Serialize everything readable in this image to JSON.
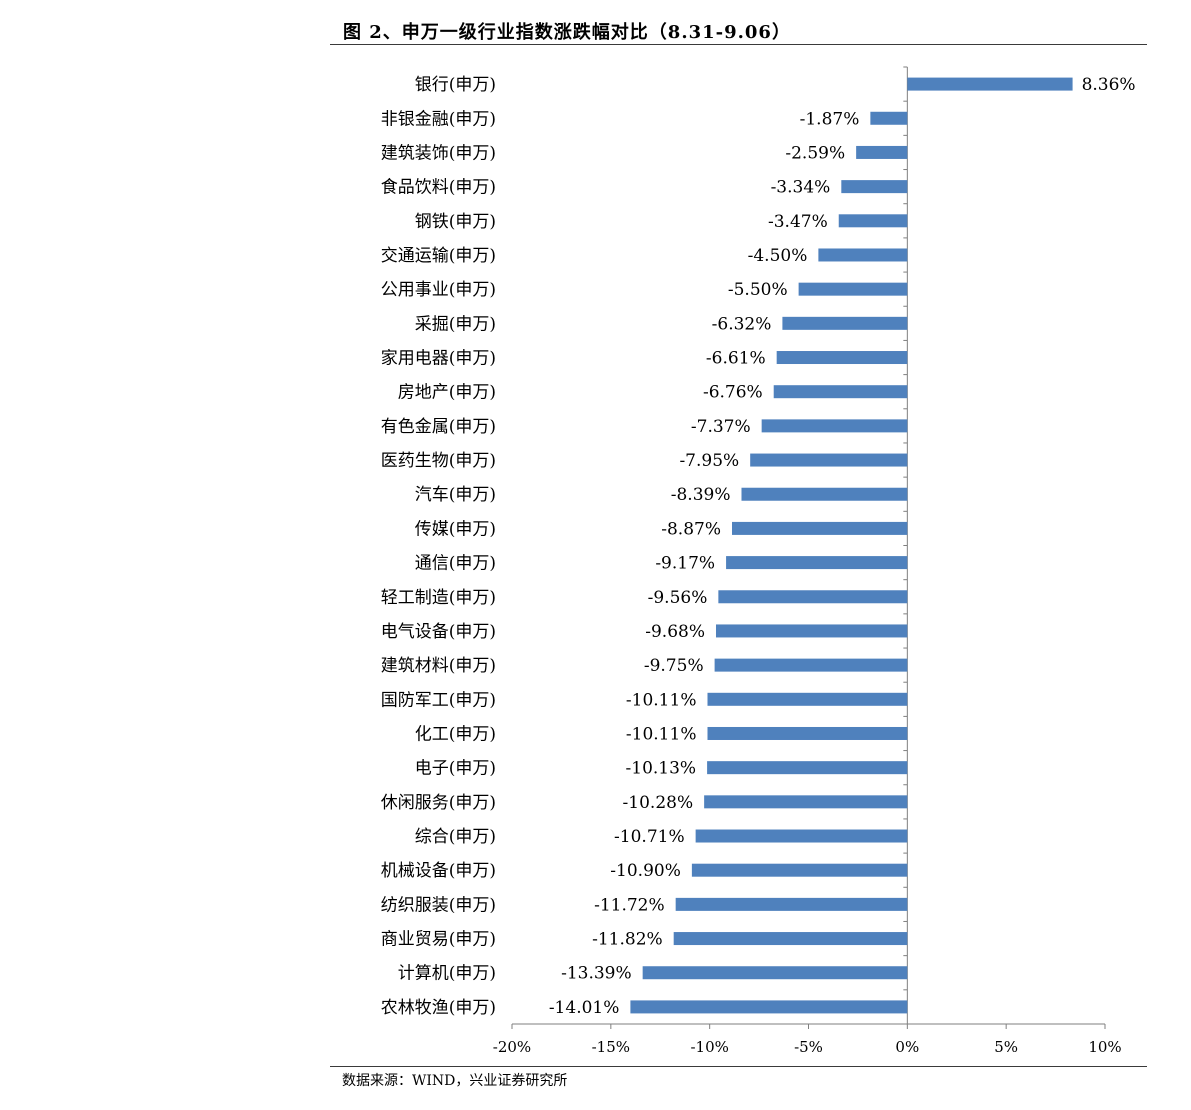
{
  "header": {
    "title": "图 2、申万一级行业指数涨跌幅对比（8.31-9.06）"
  },
  "footer": {
    "source": "数据来源：WIND，兴业证券研究所"
  },
  "colors": {
    "bar": "#4f81bd",
    "axis": "#7f7f7f",
    "rule": "#3a3a3a"
  },
  "chart_data": {
    "type": "bar",
    "orientation": "horizontal",
    "title": "图 2、申万一级行业指数涨跌幅对比（8.31-9.06）",
    "categories": [
      "银行(申万)",
      "非银金融(申万)",
      "建筑装饰(申万)",
      "食品饮料(申万)",
      "钢铁(申万)",
      "交通运输(申万)",
      "公用事业(申万)",
      "采掘(申万)",
      "家用电器(申万)",
      "房地产(申万)",
      "有色金属(申万)",
      "医药生物(申万)",
      "汽车(申万)",
      "传媒(申万)",
      "通信(申万)",
      "轻工制造(申万)",
      "电气设备(申万)",
      "建筑材料(申万)",
      "国防军工(申万)",
      "化工(申万)",
      "电子(申万)",
      "休闲服务(申万)",
      "综合(申万)",
      "机械设备(申万)",
      "纺织服装(申万)",
      "商业贸易(申万)",
      "计算机(申万)",
      "农林牧渔(申万)"
    ],
    "values": [
      8.36,
      -1.87,
      -2.59,
      -3.34,
      -3.47,
      -4.5,
      -5.5,
      -6.32,
      -6.61,
      -6.76,
      -7.37,
      -7.95,
      -8.39,
      -8.87,
      -9.17,
      -9.56,
      -9.68,
      -9.75,
      -10.11,
      -10.11,
      -10.13,
      -10.28,
      -10.71,
      -10.9,
      -11.72,
      -11.82,
      -13.39,
      -14.01
    ],
    "data_labels": [
      "8.36%",
      "-1.87%",
      "-2.59%",
      "-3.34%",
      "-3.47%",
      "-4.50%",
      "-5.50%",
      "-6.32%",
      "-6.61%",
      "-6.76%",
      "-7.37%",
      "-7.95%",
      "-8.39%",
      "-8.87%",
      "-9.17%",
      "-9.56%",
      "-9.68%",
      "-9.75%",
      "-10.11%",
      "-10.11%",
      "-10.13%",
      "-10.28%",
      "-10.71%",
      "-10.90%",
      "-11.72%",
      "-11.82%",
      "-13.39%",
      "-14.01%"
    ],
    "xlim": [
      -20,
      10
    ],
    "xticks": [
      -20,
      -15,
      -10,
      -5,
      0,
      5,
      10
    ],
    "xtick_labels": [
      "-20%",
      "-15%",
      "-10%",
      "-5%",
      "0%",
      "5%",
      "10%"
    ],
    "xlabel": "",
    "ylabel": "",
    "grid": false,
    "legend": "none"
  }
}
